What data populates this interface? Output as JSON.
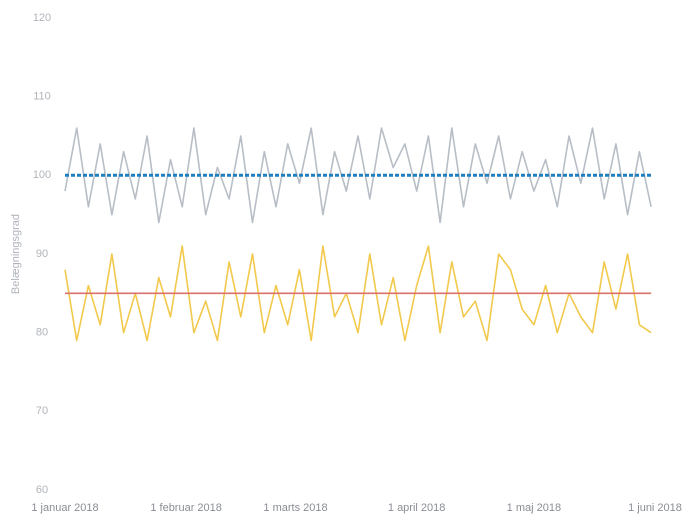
{
  "chart_data": {
    "type": "line",
    "y_label": "Belægningsgrad",
    "x": [
      "2018-01-01",
      "2018-01-04",
      "2018-01-07",
      "2018-01-10",
      "2018-01-13",
      "2018-01-16",
      "2018-01-19",
      "2018-01-22",
      "2018-01-25",
      "2018-01-28",
      "2018-01-31",
      "2018-02-03",
      "2018-02-06",
      "2018-02-09",
      "2018-02-12",
      "2018-02-15",
      "2018-02-18",
      "2018-02-21",
      "2018-02-24",
      "2018-02-27",
      "2018-03-02",
      "2018-03-05",
      "2018-03-08",
      "2018-03-11",
      "2018-03-14",
      "2018-03-17",
      "2018-03-20",
      "2018-03-23",
      "2018-03-26",
      "2018-03-29",
      "2018-04-01",
      "2018-04-04",
      "2018-04-07",
      "2018-04-10",
      "2018-04-13",
      "2018-04-16",
      "2018-04-19",
      "2018-04-22",
      "2018-04-25",
      "2018-04-28",
      "2018-05-01",
      "2018-05-04",
      "2018-05-07",
      "2018-05-10",
      "2018-05-13",
      "2018-05-16",
      "2018-05-19",
      "2018-05-22",
      "2018-05-25",
      "2018-05-28",
      "2018-05-31"
    ],
    "series": [
      {
        "color": "#b8bec6",
        "dash": false,
        "values": [
          98,
          106,
          96,
          104,
          95,
          103,
          97,
          105,
          94,
          102,
          96,
          106,
          95,
          101,
          97,
          105,
          94,
          103,
          96,
          104,
          99,
          106,
          95,
          103,
          98,
          105,
          97,
          106,
          101,
          104,
          98,
          105,
          94,
          106,
          96,
          104,
          99,
          105,
          97,
          103,
          98,
          102,
          96,
          105,
          99,
          106,
          97,
          104,
          95,
          103,
          96
        ]
      },
      {
        "color": "#1f7fbf",
        "dash": true,
        "values": [
          100,
          100,
          100,
          100,
          100,
          100,
          100,
          100,
          100,
          100,
          100,
          100,
          100,
          100,
          100,
          100,
          100,
          100,
          100,
          100,
          100,
          100,
          100,
          100,
          100,
          100,
          100,
          100,
          100,
          100,
          100,
          100,
          100,
          100,
          100,
          100,
          100,
          100,
          100,
          100,
          100,
          100,
          100,
          100,
          100,
          100,
          100,
          100,
          100,
          100,
          100
        ]
      },
      {
        "color": "#f2c94c",
        "dash": false,
        "values": [
          88,
          79,
          86,
          81,
          90,
          80,
          85,
          79,
          87,
          82,
          91,
          80,
          84,
          79,
          89,
          82,
          90,
          80,
          86,
          81,
          88,
          79,
          91,
          82,
          85,
          80,
          90,
          81,
          87,
          79,
          86,
          91,
          80,
          89,
          82,
          84,
          79,
          90,
          88,
          83,
          81,
          86,
          80,
          85,
          82,
          80,
          89,
          83,
          90,
          81,
          80
        ]
      },
      {
        "color": "#d9726b",
        "dash": false,
        "values": [
          85,
          85,
          85,
          85,
          85,
          85,
          85,
          85,
          85,
          85,
          85,
          85,
          85,
          85,
          85,
          85,
          85,
          85,
          85,
          85,
          85,
          85,
          85,
          85,
          85,
          85,
          85,
          85,
          85,
          85,
          85,
          85,
          85,
          85,
          85,
          85,
          85,
          85,
          85,
          85,
          85,
          85,
          85,
          85,
          85,
          85,
          85,
          85,
          85,
          85,
          85
        ]
      }
    ],
    "xlim": [
      "2018-01-01",
      "2018-06-01"
    ],
    "xticks": [
      {
        "value": "2018-01-01",
        "label": "1 januar 2018"
      },
      {
        "value": "2018-02-01",
        "label": "1 februar 2018"
      },
      {
        "value": "2018-03-01",
        "label": "1 marts 2018"
      },
      {
        "value": "2018-04-01",
        "label": "1 april 2018"
      },
      {
        "value": "2018-05-01",
        "label": "1 maj 2018"
      },
      {
        "value": "2018-06-01",
        "label": "1 juni 2018"
      }
    ],
    "ylim": [
      60,
      120
    ],
    "yticks": [
      60,
      70,
      80,
      90,
      100,
      110,
      120
    ],
    "grid": false
  }
}
